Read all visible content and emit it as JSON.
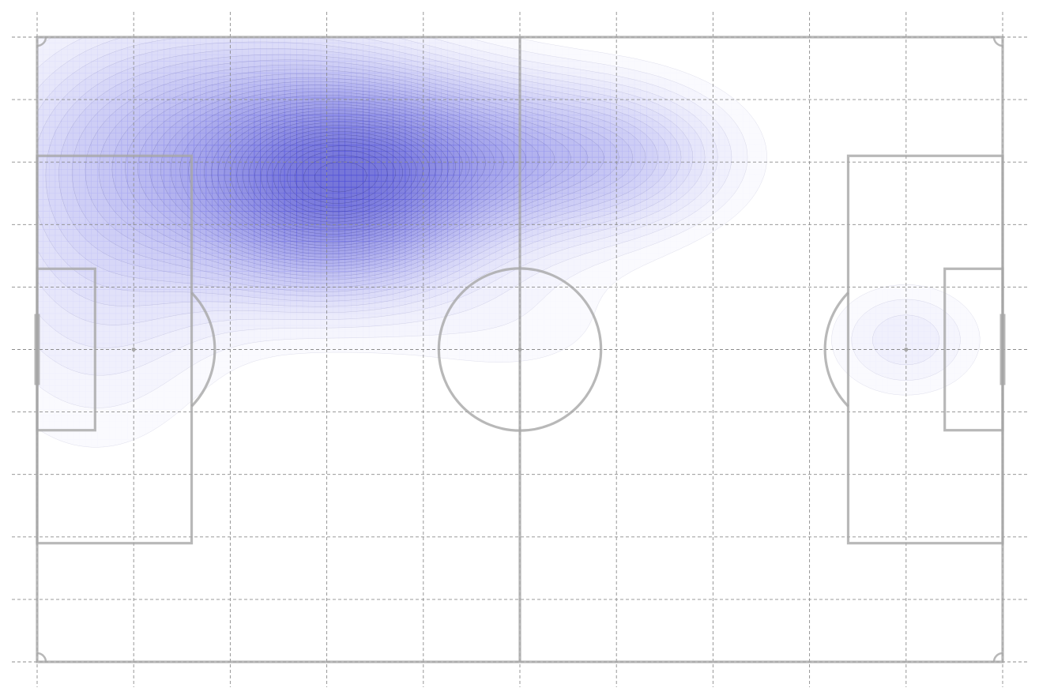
{
  "chart_data": {
    "type": "heatmap",
    "title": "",
    "xlabel": "",
    "ylabel": "",
    "pitch": {
      "length": 100,
      "width": 65,
      "line_color": "#a6a6a6",
      "grid": true,
      "grid_color": "#8c8c8c"
    },
    "grid_x": [
      0,
      10,
      20,
      30,
      40,
      50,
      60,
      70,
      80,
      90,
      100
    ],
    "grid_y": [
      0,
      6.5,
      13,
      19.5,
      26,
      32.5,
      39,
      45.5,
      52,
      58.5,
      65
    ],
    "density_color": "#3030e0",
    "contour_levels": 38,
    "density_components": [
      {
        "x": 31,
        "y": 15.8,
        "sx": 9,
        "sy": 6.5,
        "w": 1.0
      },
      {
        "x": 22,
        "y": 11.5,
        "sx": 14,
        "sy": 9,
        "w": 0.55
      },
      {
        "x": 44,
        "y": 12.5,
        "sx": 10,
        "sy": 5.5,
        "w": 0.5
      },
      {
        "x": 60,
        "y": 12.5,
        "sx": 9,
        "sy": 5.5,
        "w": 0.38
      },
      {
        "x": 6,
        "y": 21,
        "sx": 10,
        "sy": 15,
        "w": 0.25
      },
      {
        "x": 90,
        "y": 31.5,
        "sx": 6,
        "sy": 4.5,
        "w": 0.2
      },
      {
        "x": 50,
        "y": 30,
        "sx": 11,
        "sy": 6,
        "w": 0.1
      }
    ]
  }
}
